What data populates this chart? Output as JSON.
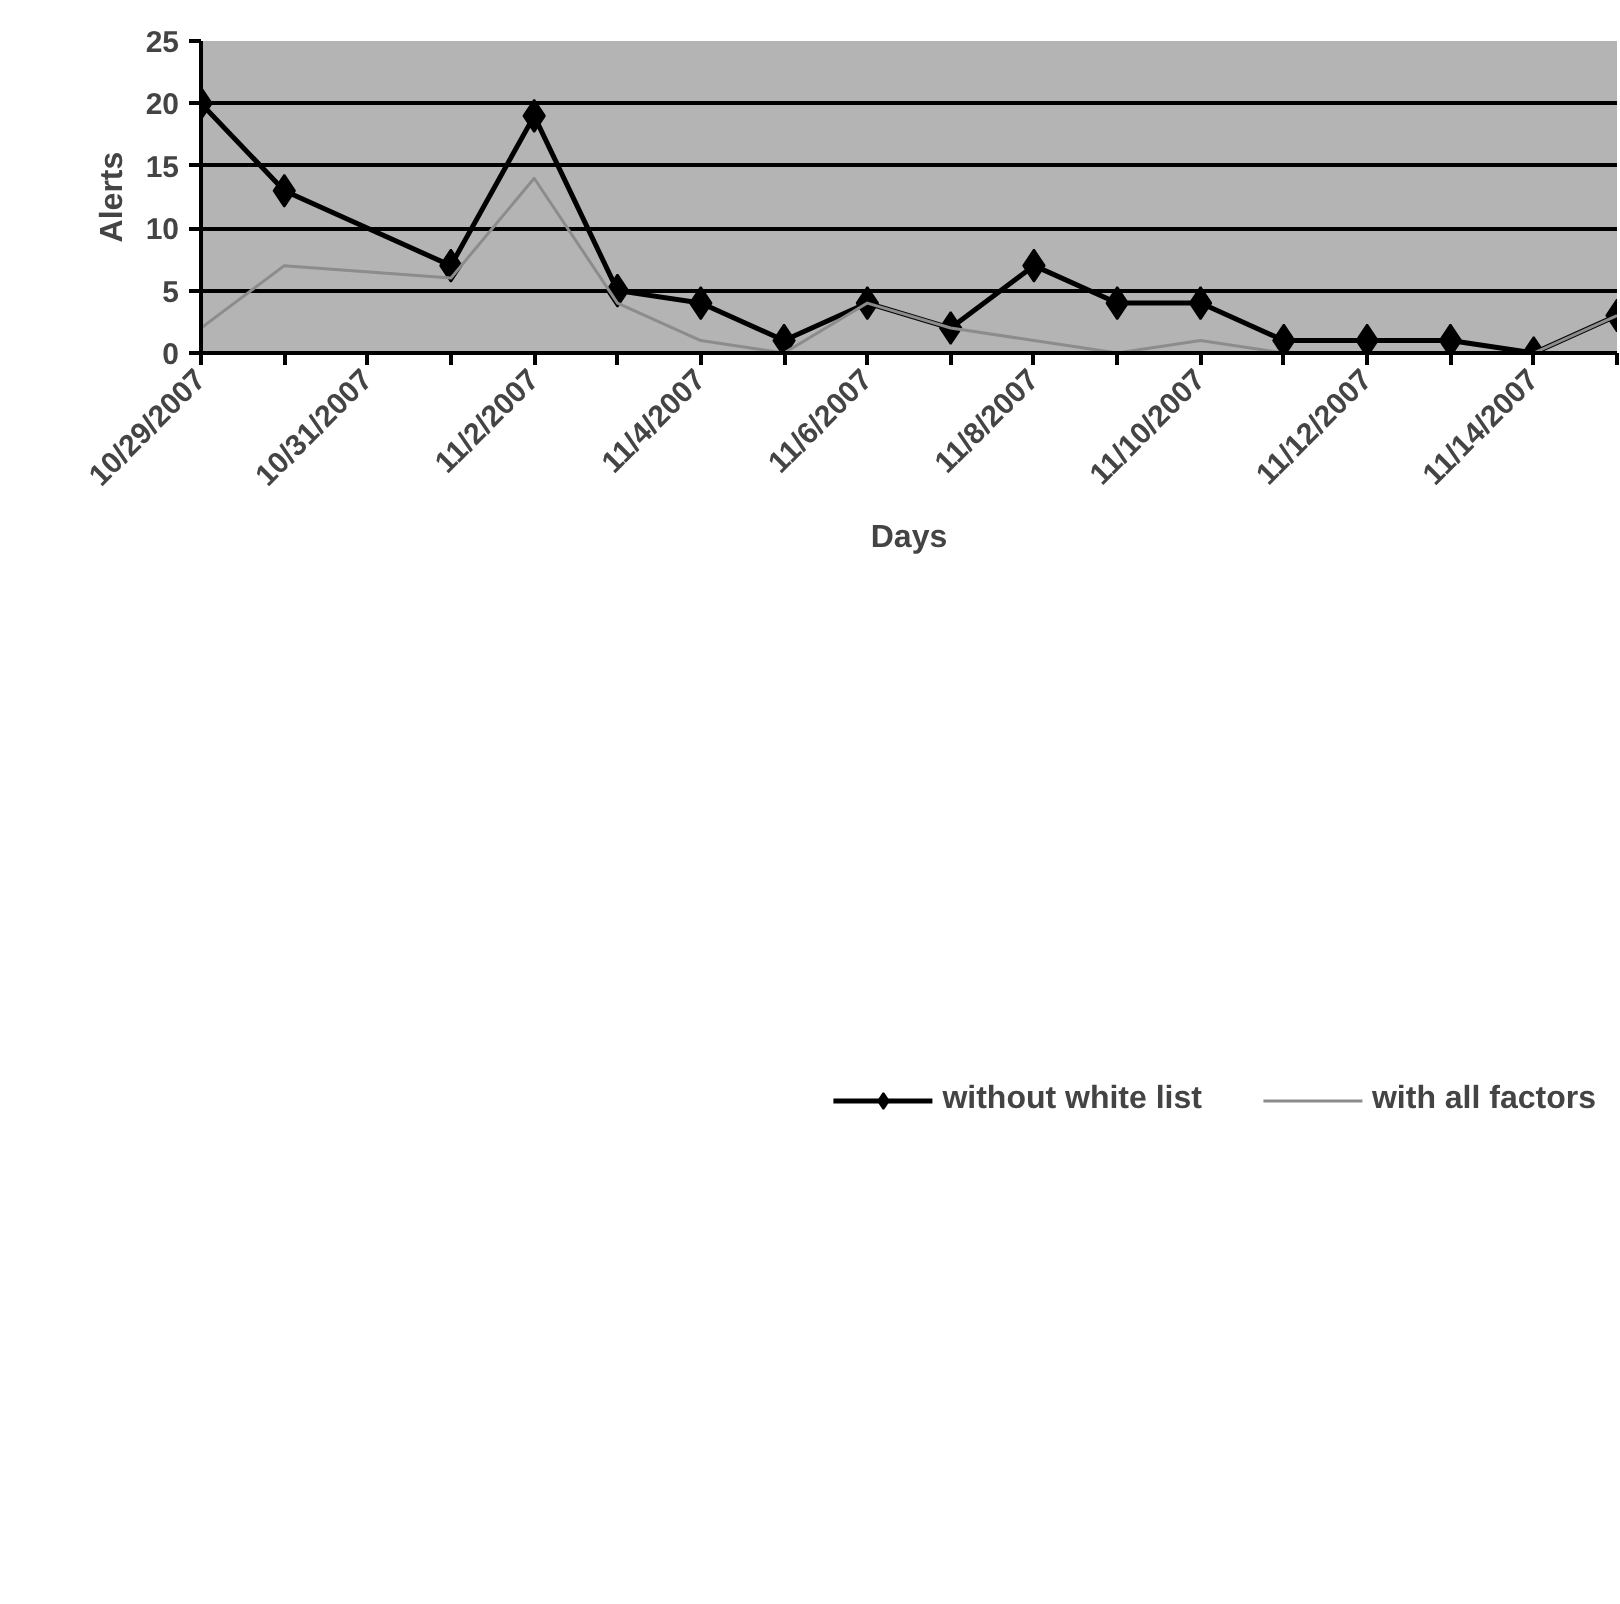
{
  "chart_data": {
    "type": "line",
    "xlabel": "Days",
    "ylabel": "Alerts",
    "x": [
      "2007-10-29",
      "2007-10-30",
      "2007-11-01",
      "2007-11-02",
      "2007-11-03",
      "2007-11-04",
      "2007-11-05",
      "2007-11-06",
      "2007-11-07",
      "2007-11-08",
      "2007-11-09",
      "2007-11-10",
      "2007-11-11",
      "2007-11-12",
      "2007-11-13",
      "2007-11-14",
      "2007-11-15"
    ],
    "series": [
      {
        "name": "without white list",
        "color": "#000000",
        "marker": "diamond",
        "values": [
          20,
          13,
          7,
          19,
          5,
          4,
          1,
          4,
          2,
          7,
          4,
          4,
          1,
          1,
          1,
          0,
          3
        ]
      },
      {
        "name": "with all factors",
        "color": "#8c8c8c",
        "marker": "none",
        "values": [
          2,
          7,
          6,
          14,
          4,
          1,
          0,
          4,
          2,
          1,
          0,
          1,
          0,
          0,
          0,
          0,
          3
        ]
      }
    ],
    "xlim": [
      "2007-10-29",
      "2007-11-15"
    ],
    "xticks": [
      {
        "value": "2007-10-29",
        "label": "10/29/2007"
      },
      {
        "value": "2007-10-30",
        "label": null
      },
      {
        "value": "2007-10-31",
        "label": "10/31/2007"
      },
      {
        "value": "2007-11-01",
        "label": null
      },
      {
        "value": "2007-11-02",
        "label": "11/2/2007"
      },
      {
        "value": "2007-11-03",
        "label": null
      },
      {
        "value": "2007-11-04",
        "label": "11/4/2007"
      },
      {
        "value": "2007-11-05",
        "label": null
      },
      {
        "value": "2007-11-06",
        "label": "11/6/2007"
      },
      {
        "value": "2007-11-07",
        "label": null
      },
      {
        "value": "2007-11-08",
        "label": "11/8/2007"
      },
      {
        "value": "2007-11-09",
        "label": null
      },
      {
        "value": "2007-11-10",
        "label": "11/10/2007"
      },
      {
        "value": "2007-11-11",
        "label": null
      },
      {
        "value": "2007-11-12",
        "label": "11/12/2007"
      },
      {
        "value": "2007-11-13",
        "label": null
      },
      {
        "value": "2007-11-14",
        "label": "11/14/2007"
      },
      {
        "value": "2007-11-15",
        "label": null
      }
    ],
    "ylim": [
      0,
      25
    ],
    "yticks": [
      0,
      5,
      10,
      15,
      20,
      25
    ],
    "grid": "y",
    "legend": "bottom",
    "line_style": "solid"
  }
}
